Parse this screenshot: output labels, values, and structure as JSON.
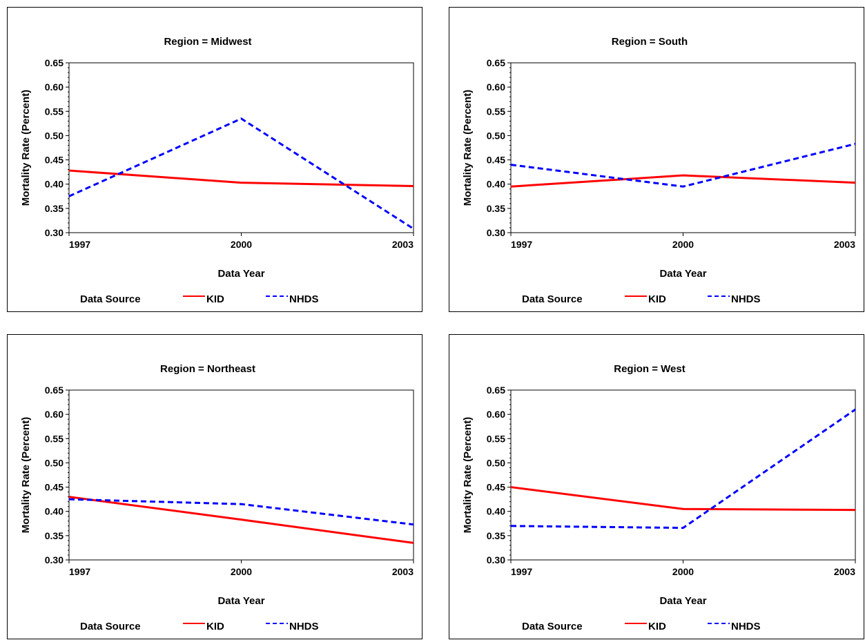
{
  "colors": {
    "kid": "#ff0000",
    "nhds": "#0000ff"
  },
  "chart_data": [
    {
      "type": "line",
      "title": "Region = Midwest",
      "xlabel": "Data Year",
      "ylabel": "Mortality Rate (Percent)",
      "x": [
        1997,
        2000,
        2003
      ],
      "xticks": [
        "1997",
        "2000",
        "2003"
      ],
      "ylim": [
        0.3,
        0.65
      ],
      "yticks": [
        "0.30",
        "0.35",
        "0.40",
        "0.45",
        "0.50",
        "0.55",
        "0.60",
        "0.65"
      ],
      "legend_title": "Data Source",
      "series": [
        {
          "name": "KID",
          "values": [
            0.428,
            0.403,
            0.396
          ]
        },
        {
          "name": "NHDS",
          "values": [
            0.375,
            0.535,
            0.308
          ]
        }
      ]
    },
    {
      "type": "line",
      "title": "Region = South",
      "xlabel": "Data Year",
      "ylabel": "Mortality Rate (Percent)",
      "x": [
        1997,
        2000,
        2003
      ],
      "xticks": [
        "1997",
        "2000",
        "2003"
      ],
      "ylim": [
        0.3,
        0.65
      ],
      "yticks": [
        "0.30",
        "0.35",
        "0.40",
        "0.45",
        "0.50",
        "0.55",
        "0.60",
        "0.65"
      ],
      "legend_title": "Data Source",
      "series": [
        {
          "name": "KID",
          "values": [
            0.395,
            0.418,
            0.403
          ]
        },
        {
          "name": "NHDS",
          "values": [
            0.44,
            0.395,
            0.483
          ]
        }
      ]
    },
    {
      "type": "line",
      "title": "Region = Northeast",
      "xlabel": "Data Year",
      "ylabel": "Mortality Rate (Percent)",
      "x": [
        1997,
        2000,
        2003
      ],
      "xticks": [
        "1997",
        "2000",
        "2003"
      ],
      "ylim": [
        0.3,
        0.65
      ],
      "yticks": [
        "0.30",
        "0.35",
        "0.40",
        "0.45",
        "0.50",
        "0.55",
        "0.60",
        "0.65"
      ],
      "legend_title": "Data Source",
      "series": [
        {
          "name": "KID",
          "values": [
            0.43,
            0.383,
            0.335
          ]
        },
        {
          "name": "NHDS",
          "values": [
            0.425,
            0.415,
            0.373
          ]
        }
      ]
    },
    {
      "type": "line",
      "title": "Region = West",
      "xlabel": "Data Year",
      "ylabel": "Mortality Rate (Percent)",
      "x": [
        1997,
        2000,
        2003
      ],
      "xticks": [
        "1997",
        "2000",
        "2003"
      ],
      "ylim": [
        0.3,
        0.65
      ],
      "yticks": [
        "0.30",
        "0.35",
        "0.40",
        "0.45",
        "0.50",
        "0.55",
        "0.60",
        "0.65"
      ],
      "legend_title": "Data Source",
      "series": [
        {
          "name": "KID",
          "values": [
            0.45,
            0.405,
            0.403
          ]
        },
        {
          "name": "NHDS",
          "values": [
            0.37,
            0.366,
            0.61
          ]
        }
      ]
    }
  ]
}
